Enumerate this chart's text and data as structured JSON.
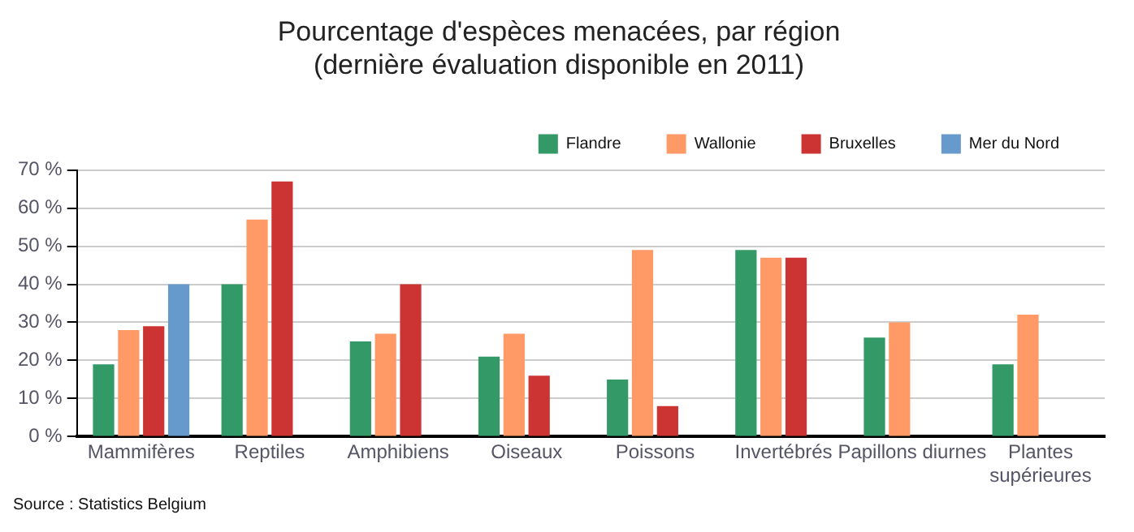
{
  "chart_data": {
    "type": "bar",
    "title": "Pourcentage d'espèces menacées, par région",
    "subtitle": "(dernière évaluation disponible en 2011)",
    "categories": [
      "Mammifères",
      "Reptiles",
      "Amphibiens",
      "Oiseaux",
      "Poissons",
      "Invertébrés",
      "Papillons diurnes",
      "Plantes supérieures"
    ],
    "series": [
      {
        "name": "Flandre",
        "color": "#339966",
        "values": [
          19,
          40,
          25,
          21,
          15,
          49,
          26,
          19
        ]
      },
      {
        "name": "Wallonie",
        "color": "#ff9966",
        "values": [
          28,
          57,
          27,
          27,
          49,
          47,
          30,
          32
        ]
      },
      {
        "name": "Bruxelles",
        "color": "#cc3333",
        "values": [
          29,
          67,
          40,
          16,
          8,
          47,
          null,
          null
        ]
      },
      {
        "name": "Mer du Nord",
        "color": "#6699cc",
        "values": [
          40,
          null,
          null,
          null,
          null,
          null,
          null,
          null
        ]
      }
    ],
    "ylim": [
      0,
      70
    ],
    "yticks": [
      {
        "value": 0,
        "label": "0 %"
      },
      {
        "value": 10,
        "label": "10 %"
      },
      {
        "value": 20,
        "label": "20 %"
      },
      {
        "value": 30,
        "label": "30 %"
      },
      {
        "value": 40,
        "label": "40 %"
      },
      {
        "value": 50,
        "label": "50 %"
      },
      {
        "value": 60,
        "label": "60 %"
      },
      {
        "value": 70,
        "label": "70 %"
      }
    ],
    "grid": "y",
    "legend": "top right",
    "annotations": [
      "Source : Statistics Belgium"
    ]
  }
}
